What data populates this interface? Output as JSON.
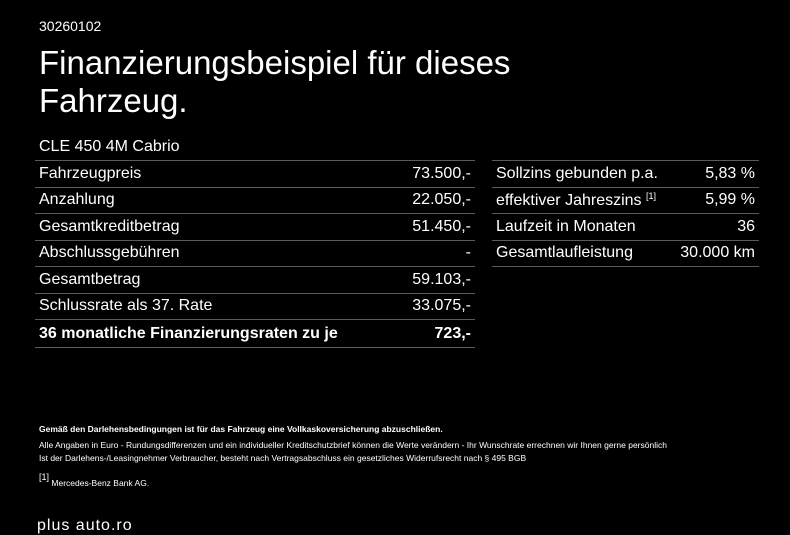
{
  "code": "30260102",
  "title": "Finanzierungsbeispiel für dieses Fahrzeug.",
  "model": "CLE 450 4M Cabrio",
  "left_rows": [
    {
      "label": "Fahrzeugpreis",
      "value": "73.500,-"
    },
    {
      "label": "Anzahlung",
      "value": "22.050,-"
    },
    {
      "label": "Gesamtkreditbetrag",
      "value": "51.450,-"
    },
    {
      "label": "Abschlussgebühren",
      "value": "-"
    },
    {
      "label": "Gesamtbetrag",
      "value": "59.103,-"
    },
    {
      "label": "Schlussrate als 37. Rate",
      "value": "33.075,-"
    },
    {
      "label": "36 monatliche Finanzierungsraten zu je",
      "value": "723,-"
    }
  ],
  "right_rows": [
    {
      "label": "Sollzins gebunden p.a.",
      "value": "5,83 %"
    },
    {
      "label": "effektiver Jahreszins",
      "footnote": "[1]",
      "value": "5,99 %"
    },
    {
      "label": "Laufzeit in Monaten",
      "value": "36"
    },
    {
      "label": "Gesamtlaufleistung",
      "value": "30.000 km"
    }
  ],
  "notes": {
    "insurance": "Gemäß den Darlehensbedingungen ist für das Fahrzeug eine Vollkaskoversicherung abzuschließen.",
    "disclaimer_1": "Alle Angaben in Euro - Rundungsdifferenzen und ein individueller Kreditschutzbrief können die Werte verändern - Ihr Wunschrate errechnen wir Ihnen gerne persönlich",
    "disclaimer_2": "Ist der Darlehens-/Leasingnehmer Verbraucher, besteht nach Vertragsabschluss ein gesetzliches Widerrufsrecht nach § 495 BGB",
    "footnote_mark": "[1]",
    "footnote_text": "Mercedes-Benz Bank AG."
  },
  "brand": "plus auto.ro"
}
